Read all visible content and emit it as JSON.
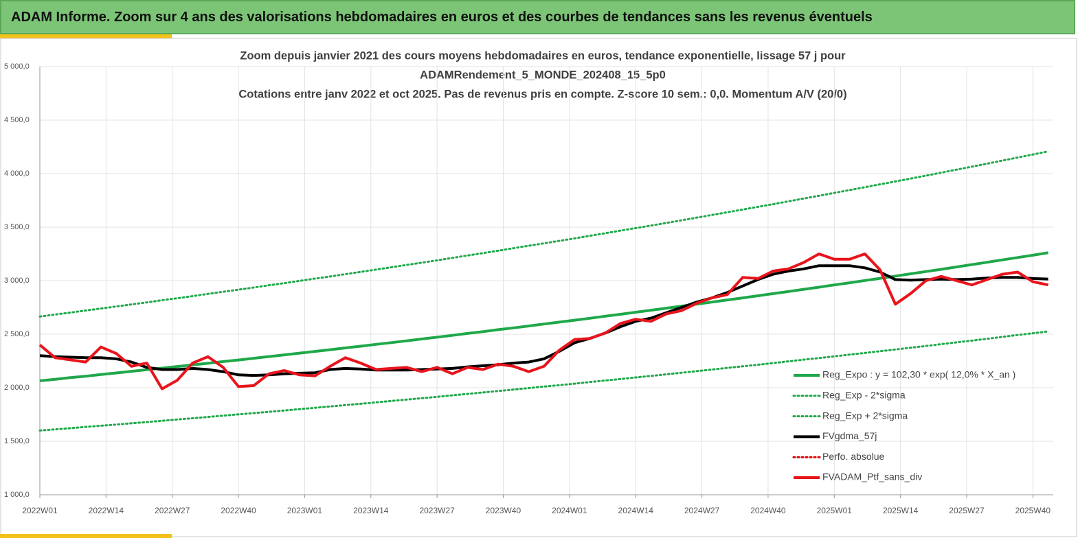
{
  "header": {
    "title": "ADAM Informe. Zoom sur 4 ans des valorisations hebdomadaires en euros et des courbes de tendances sans les revenus éventuels"
  },
  "chart_data": {
    "type": "line",
    "title": [
      "Zoom depuis janvier 2021 des cours moyens hebdomadaires  en euros, tendance exponentielle, lissage 57 j pour",
      "ADAMRendement_5_MONDE_202408_15_5p0",
      "Cotations  entre janv 2022 et oct 2025. Pas de revenus pris en compte. Z-score 10 sem.: 0,0. Momentum A/V (20/0)"
    ],
    "x": [
      0,
      3,
      6,
      9,
      12,
      15,
      18,
      21,
      24,
      27,
      30,
      33,
      36,
      39,
      42,
      45,
      48,
      51,
      54,
      57,
      60,
      63,
      66,
      69,
      72,
      75,
      78,
      81,
      84,
      87,
      90,
      93,
      96,
      99,
      102,
      105,
      108,
      111,
      114,
      117,
      120,
      123,
      126,
      129,
      132,
      135,
      138,
      141,
      144,
      147,
      150,
      153,
      156,
      159,
      162,
      165,
      168,
      171,
      174,
      177,
      180,
      183,
      186,
      189,
      192,
      195,
      198
    ],
    "xlim": [
      0,
      199
    ],
    "xticks": [
      {
        "value": 0,
        "label": "2022W01"
      },
      {
        "value": 13,
        "label": "2022W14"
      },
      {
        "value": 26,
        "label": "2022W27"
      },
      {
        "value": 39,
        "label": "2022W40"
      },
      {
        "value": 52,
        "label": "2023W01"
      },
      {
        "value": 65,
        "label": "2023W14"
      },
      {
        "value": 78,
        "label": "2023W27"
      },
      {
        "value": 91,
        "label": "2023W40"
      },
      {
        "value": 104,
        "label": "2024W01"
      },
      {
        "value": 117,
        "label": "2024W14"
      },
      {
        "value": 130,
        "label": "2024W27"
      },
      {
        "value": 143,
        "label": "2024W40"
      },
      {
        "value": 156,
        "label": "2025W01"
      },
      {
        "value": 169,
        "label": "2025W14"
      },
      {
        "value": 182,
        "label": "2025W27"
      },
      {
        "value": 195,
        "label": "2025W40"
      }
    ],
    "ylim": [
      1000,
      5000
    ],
    "yticks": [
      {
        "value": 1000,
        "label": "1 000,0"
      },
      {
        "value": 1500,
        "label": "1 500,0"
      },
      {
        "value": 2000,
        "label": "2 000,0"
      },
      {
        "value": 2500,
        "label": "2 500,0"
      },
      {
        "value": 3000,
        "label": "3 000,0"
      },
      {
        "value": 3500,
        "label": "3 500,0"
      },
      {
        "value": 4000,
        "label": "4 000,0"
      },
      {
        "value": 4500,
        "label": "4 500,0"
      },
      {
        "value": 5000,
        "label": "5 000,0"
      }
    ],
    "grid": true,
    "legend": "lower right",
    "series": [
      {
        "name": "Reg_Expo : y = 102,30 * exp( 12,0% *  X_an )",
        "color": "#1fa84a",
        "style": "solid",
        "values": [
          2065,
          2079,
          2094,
          2108,
          2123,
          2138,
          2153,
          2168,
          2183,
          2198,
          2213,
          2228,
          2244,
          2259,
          2275,
          2291,
          2307,
          2323,
          2339,
          2355,
          2372,
          2388,
          2405,
          2421,
          2438,
          2455,
          2472,
          2489,
          2507,
          2524,
          2542,
          2559,
          2577,
          2595,
          2613,
          2631,
          2649,
          2668,
          2686,
          2705,
          2724,
          2743,
          2762,
          2781,
          2800,
          2820,
          2839,
          2859,
          2879,
          2899,
          2919,
          2939,
          2960,
          2980,
          3001,
          3022,
          3043,
          3064,
          3085,
          3106,
          3128,
          3150,
          3172,
          3194,
          3216,
          3238,
          3261
        ]
      },
      {
        "name": "Reg_Exp - 2*sigma",
        "color": "#1fa84a",
        "style": "dotted",
        "values": [
          1600,
          1611,
          1622,
          1634,
          1645,
          1656,
          1668,
          1679,
          1691,
          1703,
          1715,
          1727,
          1739,
          1751,
          1763,
          1775,
          1787,
          1800,
          1812,
          1825,
          1838,
          1850,
          1863,
          1876,
          1889,
          1902,
          1915,
          1929,
          1942,
          1956,
          1969,
          1983,
          1997,
          2011,
          2024,
          2038,
          2053,
          2067,
          2081,
          2096,
          2110,
          2125,
          2140,
          2155,
          2170,
          2185,
          2200,
          2215,
          2230,
          2246,
          2262,
          2277,
          2293,
          2309,
          2325,
          2341,
          2357,
          2374,
          2390,
          2407,
          2424,
          2440,
          2457,
          2475,
          2492,
          2509,
          2526
        ]
      },
      {
        "name": "Reg_Exp + 2*sigma",
        "color": "#1fa84a",
        "style": "dotted",
        "values": [
          2665,
          2684,
          2702,
          2721,
          2740,
          2759,
          2778,
          2797,
          2817,
          2836,
          2856,
          2876,
          2896,
          2916,
          2936,
          2957,
          2977,
          2998,
          3019,
          3039,
          3061,
          3082,
          3103,
          3125,
          3147,
          3168,
          3190,
          3213,
          3235,
          3257,
          3280,
          3303,
          3326,
          3349,
          3372,
          3395,
          3419,
          3443,
          3467,
          3491,
          3515,
          3539,
          3564,
          3589,
          3614,
          3639,
          3664,
          3690,
          3715,
          3741,
          3767,
          3793,
          3820,
          3846,
          3873,
          3900,
          3927,
          3954,
          3981,
          4009,
          4037,
          4065,
          4093,
          4122,
          4150,
          4179,
          4208
        ]
      },
      {
        "name": "FVgdma_57j",
        "color": "#000000",
        "style": "solid",
        "values": [
          2300,
          2290,
          2285,
          2280,
          2280,
          2270,
          2240,
          2190,
          2170,
          2170,
          2180,
          2170,
          2150,
          2120,
          2115,
          2120,
          2130,
          2135,
          2140,
          2170,
          2180,
          2175,
          2165,
          2165,
          2165,
          2170,
          2175,
          2180,
          2195,
          2205,
          2215,
          2230,
          2240,
          2270,
          2340,
          2420,
          2460,
          2510,
          2570,
          2620,
          2650,
          2700,
          2750,
          2800,
          2840,
          2890,
          2950,
          3010,
          3060,
          3090,
          3110,
          3140,
          3140,
          3140,
          3120,
          3080,
          3010,
          3005,
          3010,
          3015,
          3010,
          3015,
          3025,
          3030,
          3030,
          3020,
          3015
        ]
      },
      {
        "name": "Perfo. absolue",
        "color": "#e00000",
        "style": "dotted"
      },
      {
        "name": "FVADAM_Ptf_sans_div",
        "color": "#e8141c",
        "style": "solid",
        "values": [
          2400,
          2280,
          2260,
          2240,
          2380,
          2320,
          2200,
          2230,
          1990,
          2070,
          2230,
          2290,
          2190,
          2010,
          2020,
          2130,
          2160,
          2120,
          2110,
          2200,
          2280,
          2230,
          2170,
          2180,
          2190,
          2150,
          2190,
          2130,
          2190,
          2170,
          2220,
          2200,
          2150,
          2200,
          2350,
          2450,
          2460,
          2510,
          2600,
          2640,
          2620,
          2690,
          2720,
          2790,
          2840,
          2870,
          3030,
          3020,
          3090,
          3110,
          3170,
          3250,
          3200,
          3200,
          3250,
          3100,
          2780,
          2880,
          3000,
          3040,
          3000,
          2960,
          3010,
          3060,
          3080,
          2990,
          2960
        ]
      }
    ]
  }
}
